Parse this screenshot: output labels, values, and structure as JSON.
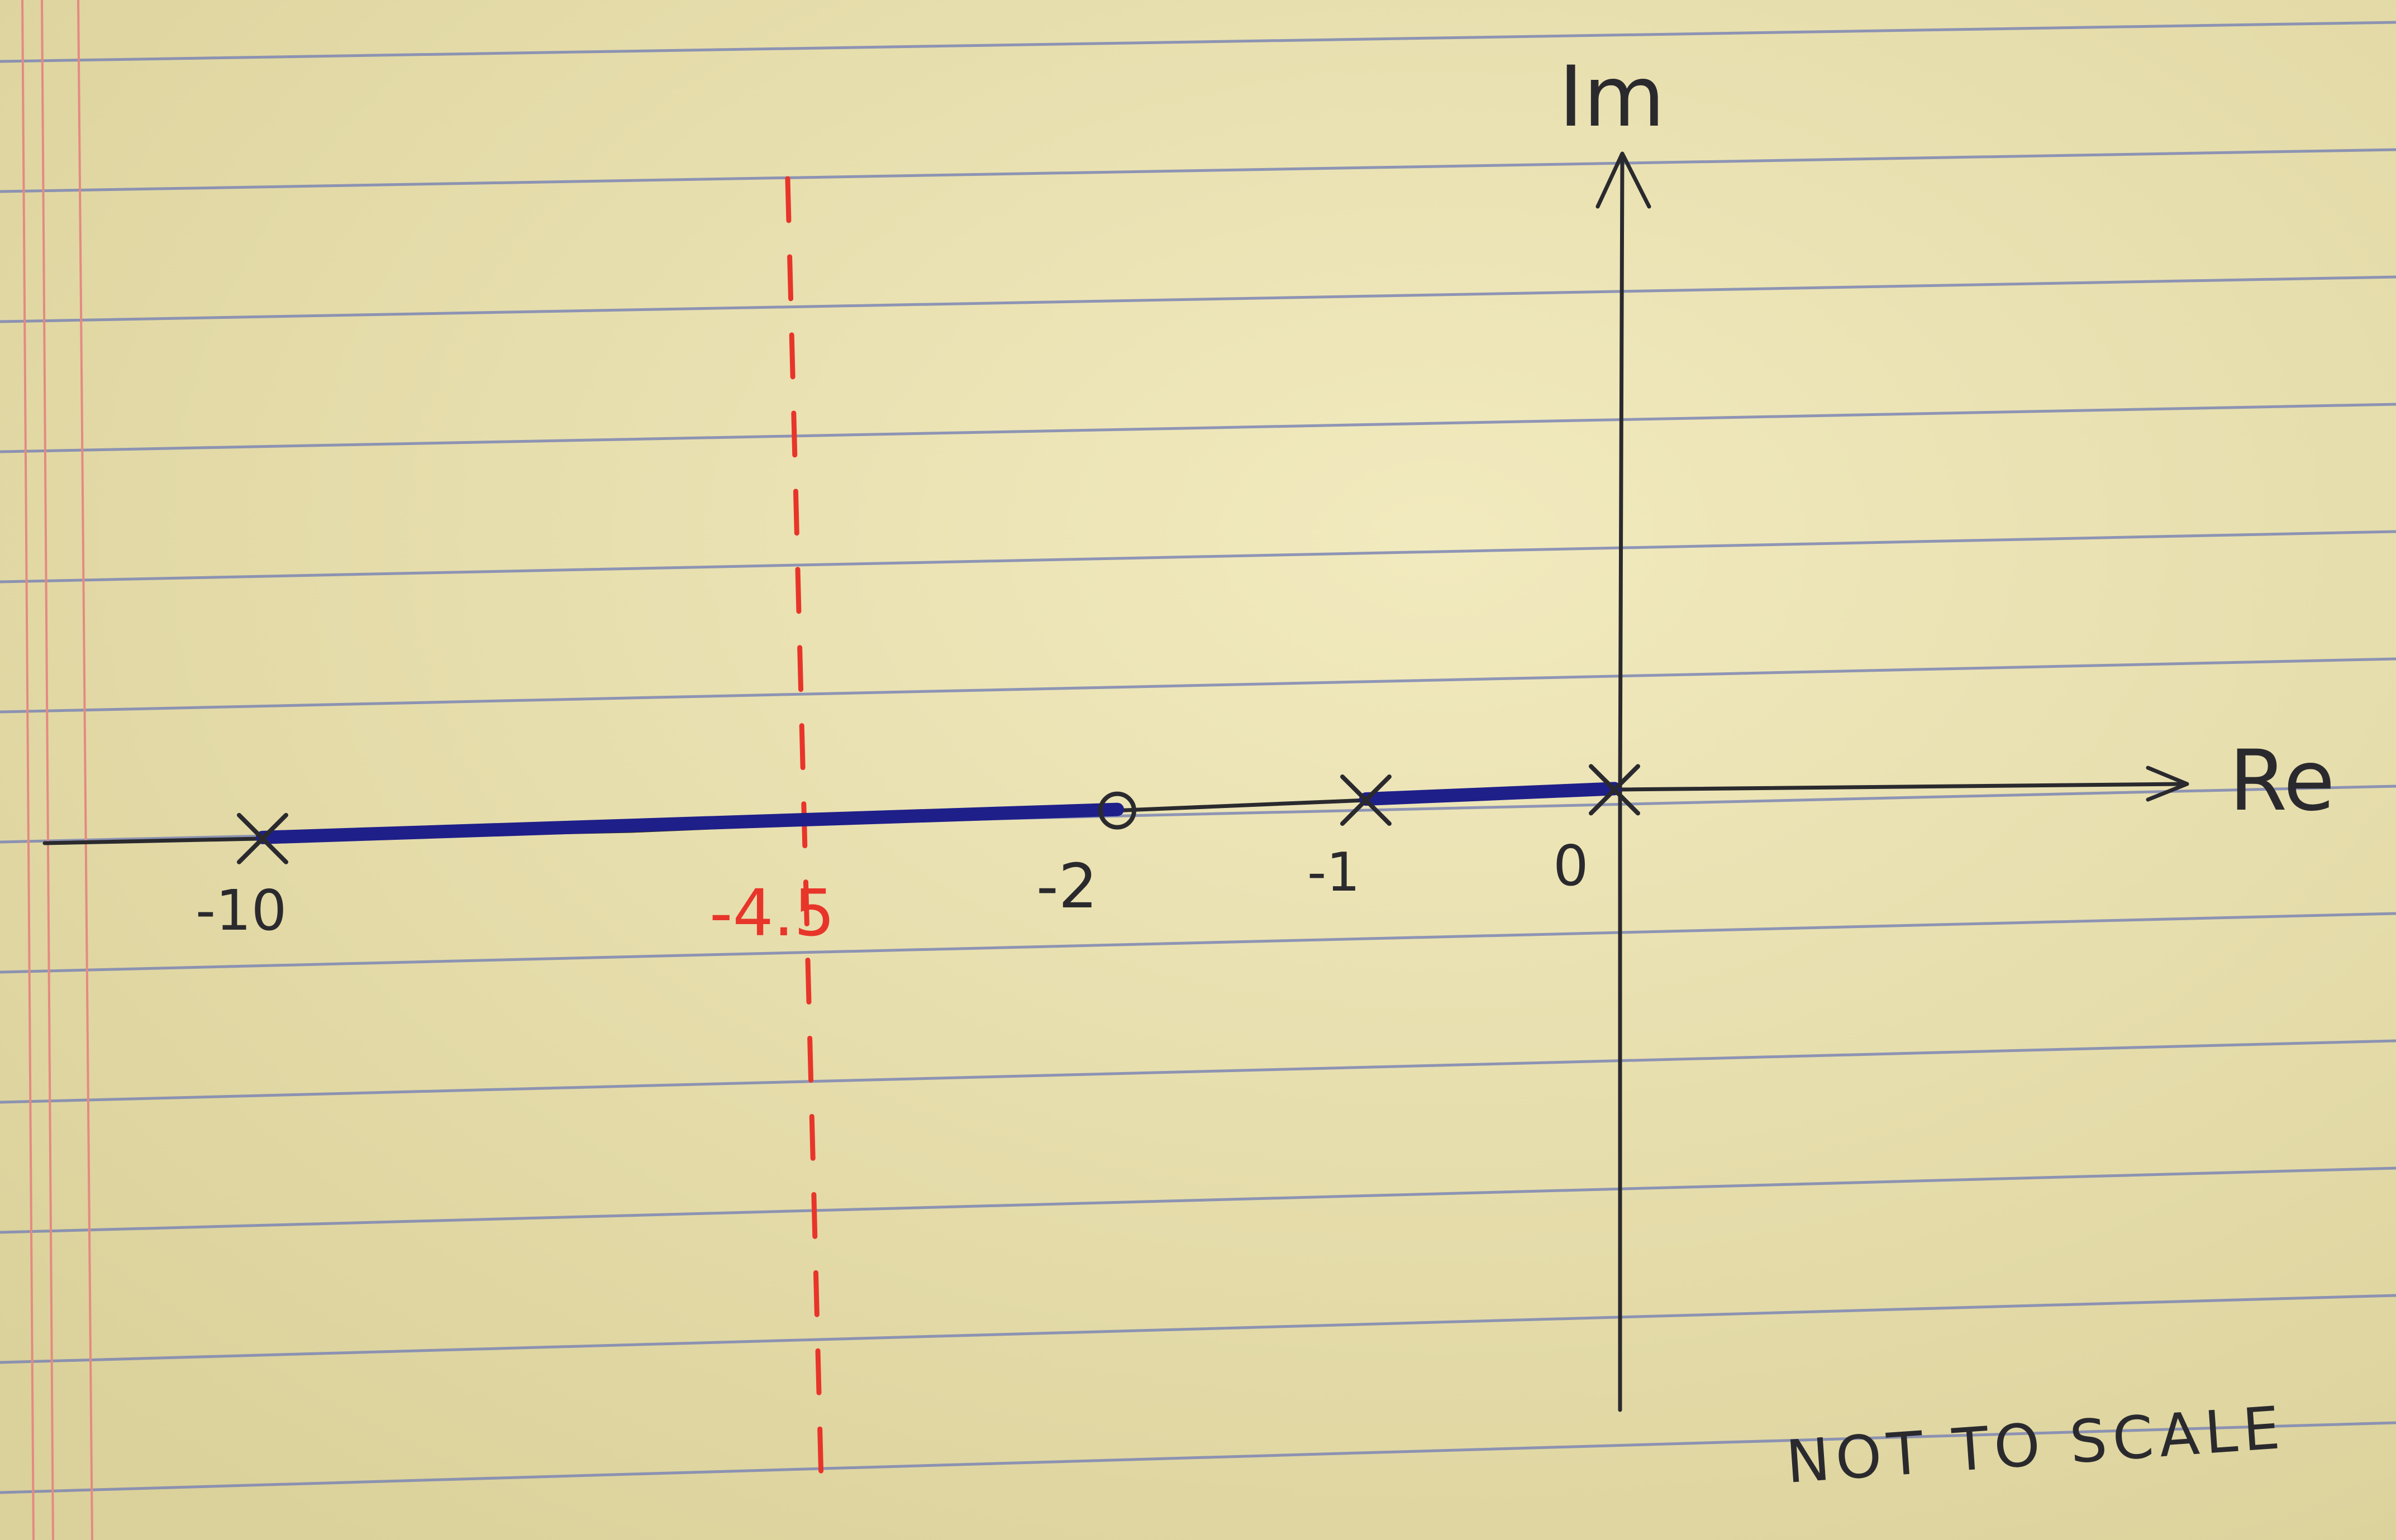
{
  "paper": {
    "color": "#ece3b0",
    "rule_color": "#7d86b4",
    "margin_color": "#e48a82"
  },
  "colors": {
    "ink": "#2a2a2e",
    "locus": "#1f1f8a",
    "asymptote": "#e8352a"
  },
  "axes": {
    "real_label": "Re",
    "imag_label": "Im"
  },
  "poles": [
    {
      "value": -10,
      "label": "-10"
    },
    {
      "value": -1,
      "label": "-1"
    },
    {
      "value": 0,
      "label": "0"
    }
  ],
  "zeros": [
    {
      "value": -2,
      "label": "-2"
    }
  ],
  "locus_segments": [
    {
      "from": -10,
      "to": -2
    },
    {
      "from": -1,
      "to": 0
    }
  ],
  "asymptote": {
    "value": -4.5,
    "label": "-4.5",
    "style": "dashed"
  },
  "note": "NOT TO SCALE"
}
